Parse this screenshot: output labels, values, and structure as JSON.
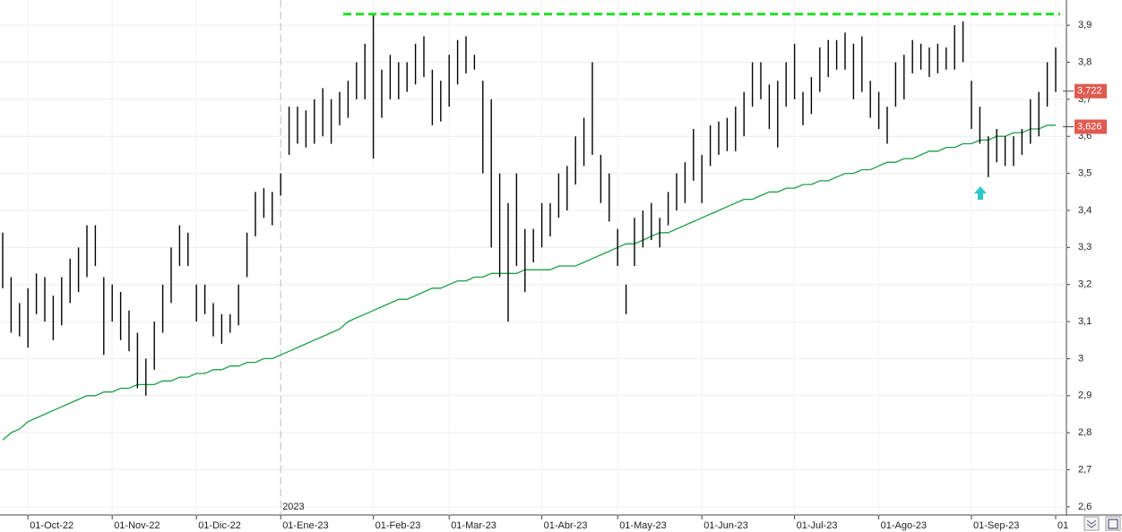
{
  "chart_data": {
    "type": "ohlc",
    "categories": [
      null,
      null,
      null,
      "01-Oct-22",
      null,
      null,
      null,
      null,
      null,
      null,
      null,
      null,
      null,
      "01-Nov-22",
      null,
      null,
      null,
      null,
      null,
      null,
      null,
      null,
      null,
      "01-Dic-22",
      null,
      null,
      null,
      null,
      null,
      null,
      null,
      null,
      null,
      "01-Ene-23",
      null,
      null,
      null,
      null,
      null,
      null,
      null,
      null,
      null,
      null,
      "01-Feb-23",
      null,
      null,
      null,
      null,
      null,
      null,
      null,
      null,
      "01-Mar-23",
      null,
      null,
      null,
      null,
      null,
      null,
      null,
      null,
      null,
      null,
      "01-Abr-23",
      null,
      null,
      null,
      null,
      null,
      null,
      null,
      null,
      "01-May-23",
      null,
      null,
      null,
      null,
      null,
      null,
      null,
      null,
      null,
      "01-Jun-23",
      null,
      null,
      null,
      null,
      null,
      null,
      null,
      null,
      null,
      null,
      "01-Jul-23",
      null,
      null,
      null,
      null,
      null,
      null,
      null,
      null,
      null,
      "01-Ago-23",
      null,
      null,
      null,
      null,
      null,
      null,
      null,
      null,
      null,
      null,
      "01-Sep-23",
      null,
      null,
      null,
      null,
      null,
      null,
      null,
      null,
      null,
      "01"
    ],
    "bars": {
      "color": "#000000",
      "high": [
        3.34,
        3.22,
        3.15,
        3.19,
        3.23,
        3.22,
        3.17,
        3.22,
        3.27,
        3.3,
        3.36,
        3.36,
        3.22,
        3.2,
        3.18,
        3.13,
        3.07,
        3.0,
        3.1,
        3.2,
        3.3,
        3.36,
        3.34,
        3.2,
        3.2,
        3.15,
        3.12,
        3.12,
        3.2,
        3.34,
        3.45,
        3.46,
        3.45,
        3.5,
        3.68,
        3.68,
        3.67,
        3.7,
        3.73,
        3.7,
        3.72,
        3.75,
        3.8,
        3.85,
        3.93,
        3.78,
        3.82,
        3.8,
        3.8,
        3.85,
        3.87,
        3.78,
        3.75,
        3.82,
        3.86,
        3.87,
        3.82,
        3.75,
        3.7,
        3.5,
        3.42,
        3.5,
        3.35,
        3.35,
        3.42,
        3.42,
        3.5,
        3.52,
        3.6,
        3.65,
        3.8,
        3.55,
        3.5,
        3.35,
        3.2,
        3.38,
        3.4,
        3.42,
        3.38,
        3.45,
        3.5,
        3.53,
        3.62,
        3.55,
        3.63,
        3.64,
        3.65,
        3.68,
        3.72,
        3.8,
        3.8,
        3.74,
        3.75,
        3.8,
        3.85,
        3.72,
        3.76,
        3.84,
        3.86,
        3.86,
        3.88,
        3.85,
        3.87,
        3.75,
        3.72,
        3.68,
        3.8,
        3.82,
        3.86,
        3.85,
        3.84,
        3.85,
        3.84,
        3.9,
        3.91,
        3.75,
        3.68,
        3.6,
        3.62,
        3.6,
        3.6,
        3.62,
        3.7,
        3.72,
        3.8,
        3.84
      ],
      "low": [
        3.19,
        3.07,
        3.06,
        3.03,
        3.12,
        3.1,
        3.05,
        3.09,
        3.15,
        3.18,
        3.22,
        3.25,
        3.01,
        3.1,
        3.05,
        3.02,
        2.92,
        2.9,
        2.97,
        3.07,
        3.15,
        3.25,
        3.25,
        3.1,
        3.12,
        3.06,
        3.04,
        3.07,
        3.09,
        3.22,
        3.33,
        3.38,
        3.36,
        3.44,
        3.55,
        3.58,
        3.57,
        3.58,
        3.6,
        3.58,
        3.63,
        3.65,
        3.7,
        3.7,
        3.54,
        3.65,
        3.7,
        3.7,
        3.72,
        3.74,
        3.76,
        3.63,
        3.64,
        3.68,
        3.74,
        3.77,
        3.78,
        3.5,
        3.3,
        3.22,
        3.1,
        3.25,
        3.18,
        3.26,
        3.3,
        3.33,
        3.38,
        3.4,
        3.47,
        3.52,
        3.55,
        3.42,
        3.37,
        3.25,
        3.12,
        3.25,
        3.3,
        3.32,
        3.3,
        3.36,
        3.4,
        3.42,
        3.48,
        3.42,
        3.52,
        3.55,
        3.56,
        3.56,
        3.6,
        3.68,
        3.7,
        3.62,
        3.57,
        3.68,
        3.7,
        3.63,
        3.66,
        3.72,
        3.76,
        3.78,
        3.78,
        3.7,
        3.72,
        3.65,
        3.62,
        3.58,
        3.68,
        3.7,
        3.77,
        3.78,
        3.76,
        3.77,
        3.78,
        3.78,
        3.8,
        3.62,
        3.58,
        3.49,
        3.53,
        3.52,
        3.52,
        3.55,
        3.58,
        3.6,
        3.68,
        3.72
      ]
    },
    "moving_average": {
      "color": "#1e9e46",
      "values": [
        2.78,
        2.8,
        2.81,
        2.83,
        2.84,
        2.85,
        2.86,
        2.87,
        2.88,
        2.89,
        2.9,
        2.9,
        2.91,
        2.91,
        2.92,
        2.92,
        2.93,
        2.93,
        2.93,
        2.94,
        2.94,
        2.95,
        2.95,
        2.96,
        2.96,
        2.97,
        2.97,
        2.98,
        2.98,
        2.99,
        2.99,
        3.0,
        3.0,
        3.01,
        3.02,
        3.03,
        3.04,
        3.05,
        3.06,
        3.07,
        3.08,
        3.1,
        3.11,
        3.12,
        3.13,
        3.14,
        3.15,
        3.16,
        3.16,
        3.17,
        3.18,
        3.19,
        3.19,
        3.2,
        3.21,
        3.21,
        3.22,
        3.22,
        3.23,
        3.23,
        3.23,
        3.23,
        3.24,
        3.24,
        3.24,
        3.24,
        3.25,
        3.25,
        3.25,
        3.26,
        3.27,
        3.28,
        3.29,
        3.3,
        3.31,
        3.31,
        3.32,
        3.33,
        3.34,
        3.34,
        3.35,
        3.36,
        3.37,
        3.38,
        3.39,
        3.4,
        3.41,
        3.42,
        3.43,
        3.43,
        3.44,
        3.45,
        3.45,
        3.46,
        3.46,
        3.47,
        3.47,
        3.48,
        3.48,
        3.49,
        3.5,
        3.5,
        3.51,
        3.51,
        3.52,
        3.53,
        3.53,
        3.54,
        3.54,
        3.55,
        3.56,
        3.56,
        3.57,
        3.57,
        3.58,
        3.58,
        3.59,
        3.59,
        3.6,
        3.6,
        3.61,
        3.61,
        3.62,
        3.62,
        3.63,
        3.63
      ]
    },
    "resistance": {
      "value": 3.93,
      "color": "#22dd22"
    },
    "price_flags": [
      {
        "value": 3.722,
        "label": "3,722",
        "color": "#e05a50"
      },
      {
        "value": 3.626,
        "label": "3,626",
        "color": "#e05a50"
      }
    ],
    "year_label": "2023",
    "ylim": [
      2.578,
      3.968
    ],
    "yticks": [
      {
        "value": 2.6,
        "label": "2,6"
      },
      {
        "value": 2.7,
        "label": "2,7"
      },
      {
        "value": 2.8,
        "label": "2,8"
      },
      {
        "value": 2.9,
        "label": "2,9"
      },
      3,
      {
        "value": 3.1,
        "label": "3,1"
      },
      {
        "value": 3.2,
        "label": "3,2"
      },
      {
        "value": 3.3,
        "label": "3,3"
      },
      {
        "value": 3.4,
        "label": "3,4"
      },
      {
        "value": 3.5,
        "label": "3,5"
      },
      {
        "value": 3.6,
        "label": "3,6"
      },
      {
        "value": 3.7,
        "label": "3,7"
      },
      {
        "value": 3.8,
        "label": "3,8"
      },
      {
        "value": 3.9,
        "label": "3,9"
      }
    ],
    "grid": true
  }
}
